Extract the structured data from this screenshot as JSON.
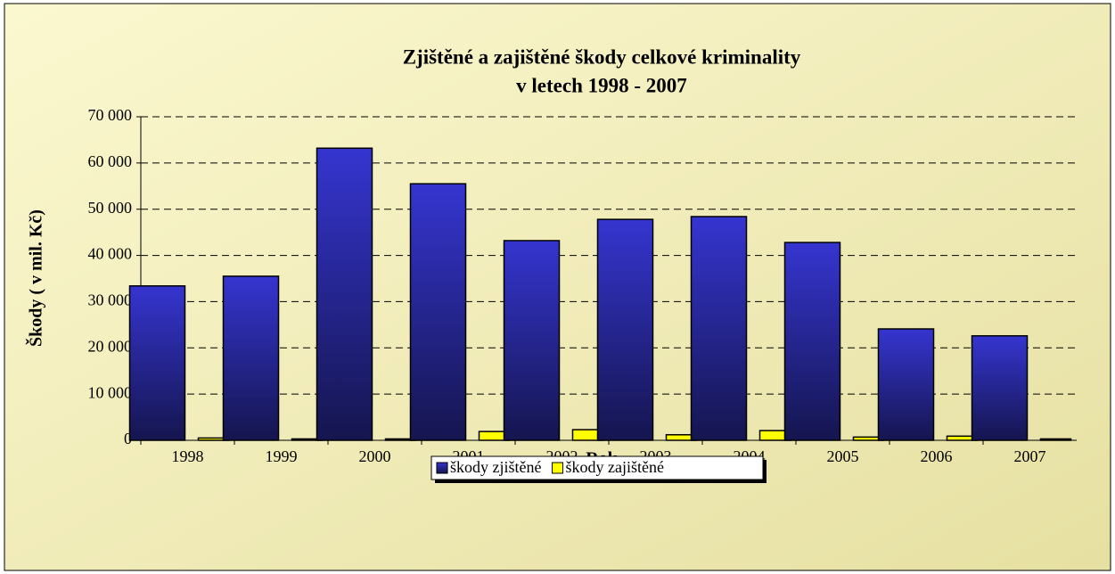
{
  "chart_data": {
    "type": "bar",
    "title": [
      "Zjištěné a zajištěné škody celkové kriminality",
      "v letech 1998 - 2007"
    ],
    "x_label": "Rok",
    "y_label": "Škody ( v mil. Kč)",
    "categories": [
      "1998",
      "1999",
      "2000",
      "2001",
      "2002",
      "2003",
      "2004",
      "2005",
      "2006",
      "2007"
    ],
    "series": [
      {
        "name": "škody zjištěné",
        "color": "#3333cc",
        "values": [
          33400,
          35500,
          63200,
          55500,
          43200,
          47800,
          48400,
          42800,
          24100,
          22600
        ]
      },
      {
        "name": "škody zajištěné",
        "color": "#ffff00",
        "values": [
          500,
          300,
          300,
          1900,
          2300,
          1200,
          2100,
          700,
          900,
          300
        ]
      }
    ],
    "ylim": [
      0,
      70000
    ],
    "yticks": [
      0,
      {
        "value": 10000,
        "label": "10 000"
      },
      {
        "value": 20000,
        "label": "20 000"
      },
      {
        "value": 30000,
        "label": "30 000"
      },
      {
        "value": 40000,
        "label": "40 000"
      },
      {
        "value": 50000,
        "label": "50 000"
      },
      {
        "value": 60000,
        "label": "60 000"
      },
      {
        "value": 70000,
        "label": "70 000"
      }
    ],
    "grid": true,
    "legend": "bottom"
  }
}
